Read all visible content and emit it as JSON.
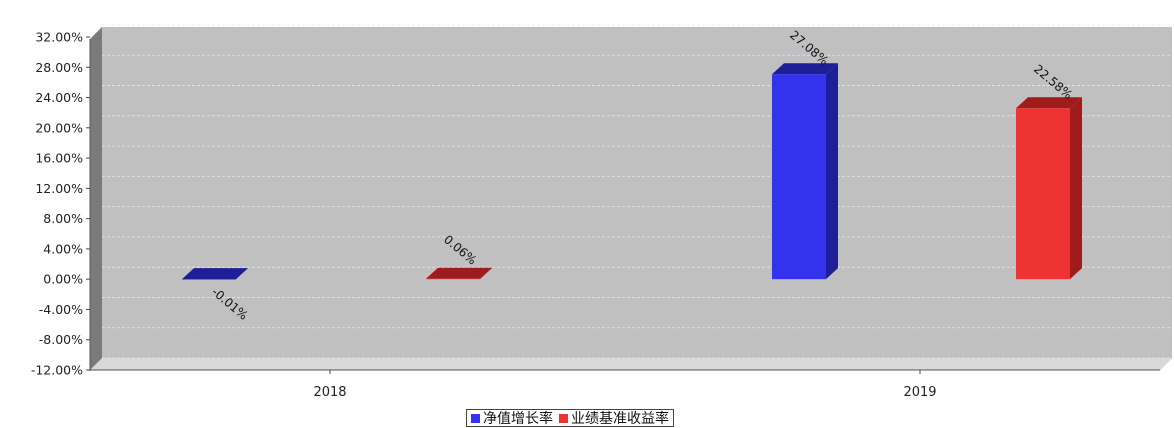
{
  "chart_data": {
    "type": "bar",
    "categories": [
      "2018",
      "2019"
    ],
    "series": [
      {
        "name": "净值增长率",
        "values": [
          -0.01,
          27.08
        ],
        "labels": [
          "-0.01%",
          "27.08%"
        ],
        "color": "#3333ee",
        "side_color": "#1e1e99"
      },
      {
        "name": "业绩基准收益率",
        "values": [
          0.06,
          22.58
        ],
        "labels": [
          "0.06%",
          "22.58%"
        ],
        "color": "#ee3333",
        "side_color": "#a01c1c"
      }
    ],
    "y_ticks": [
      "32.00%",
      "28.00%",
      "24.00%",
      "20.00%",
      "16.00%",
      "12.00%",
      "8.00%",
      "4.00%",
      "0.00%",
      "-4.00%",
      "-8.00%",
      "-12.00%"
    ],
    "ylim": [
      -12,
      32
    ],
    "grid": true,
    "legend_position": "bottom-center",
    "plot_background": "#c0c0c0"
  }
}
